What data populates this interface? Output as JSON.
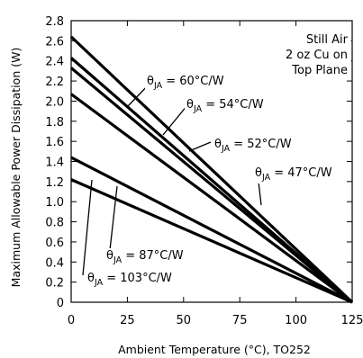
{
  "chart_data": {
    "type": "line",
    "xlabel": "Ambient Temperature (°C), TO252",
    "ylabel": "Maximum Allowable Power Dissipation (W)",
    "xlim": [
      0,
      125
    ],
    "ylim": [
      0,
      2.8
    ],
    "xticks": [
      0,
      25,
      50,
      75,
      100,
      125
    ],
    "yticks": [
      0,
      0.2,
      0.4,
      0.6,
      0.8,
      1.0,
      1.2,
      1.4,
      1.6,
      1.8,
      2.0,
      2.2,
      2.4,
      2.6,
      2.8
    ],
    "ytick_labels": [
      "0",
      "0.2",
      "0.4",
      "0.6",
      "0.8",
      "1.0",
      "1.2",
      "1.4",
      "1.6",
      "1.8",
      "2.0",
      "2.2",
      "2.4",
      "2.6",
      "2.8"
    ],
    "grid": false,
    "annotation": [
      "Still Air",
      "2 oz Cu on",
      "Top Plane"
    ],
    "series": [
      {
        "name": "θJA = 47°C/W",
        "x": [
          0,
          125
        ],
        "values": [
          2.64,
          0
        ]
      },
      {
        "name": "θJA = 52°C/W",
        "x": [
          0,
          125
        ],
        "values": [
          2.43,
          0
        ]
      },
      {
        "name": "θJA = 54°C/W",
        "x": [
          0,
          125
        ],
        "values": [
          2.33,
          0
        ]
      },
      {
        "name": "θJA = 60°C/W",
        "x": [
          0,
          125
        ],
        "values": [
          2.07,
          0
        ]
      },
      {
        "name": "θJA = 87°C/W",
        "x": [
          0,
          125
        ],
        "values": [
          1.44,
          0
        ]
      },
      {
        "name": "θJA = 103°C/W",
        "x": [
          0,
          125
        ],
        "values": [
          1.22,
          0
        ]
      }
    ],
    "series_labels": [
      {
        "prefix": "θ",
        "sub": "JA",
        "text": " = 60°C/W"
      },
      {
        "prefix": "θ",
        "sub": "JA",
        "text": " = 54°C/W"
      },
      {
        "prefix": "θ",
        "sub": "JA",
        "text": " = 52°C/W"
      },
      {
        "prefix": "θ",
        "sub": "JA",
        "text": " = 47°C/W"
      },
      {
        "prefix": "θ",
        "sub": "JA",
        "text": " = 87°C/W"
      },
      {
        "prefix": "θ",
        "sub": "JA",
        "text": " = 103°C/W"
      }
    ],
    "line_color": "#000000"
  }
}
